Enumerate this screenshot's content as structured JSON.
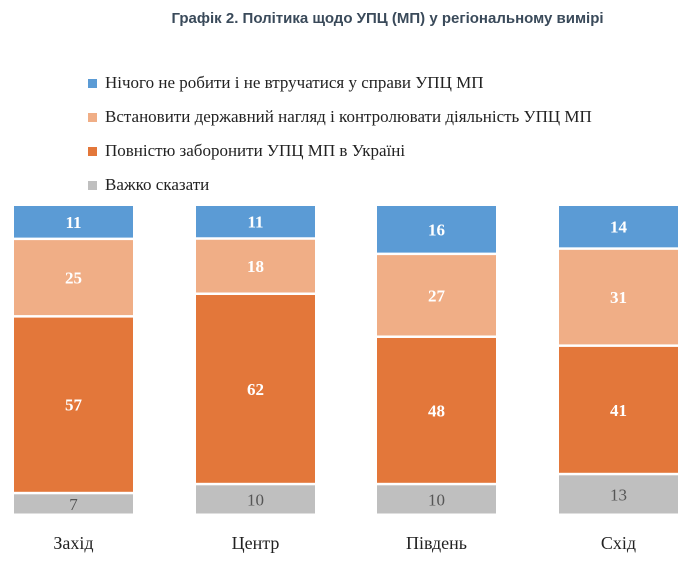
{
  "title": "Графік 2. Політика щодо УПЦ (МП) у регіональному вимірі",
  "chart_data": {
    "type": "bar",
    "stacked": true,
    "normalized": true,
    "categories": [
      "Захід",
      "Центр",
      "Південь",
      "Схід"
    ],
    "series": [
      {
        "name": "Нічого не робити і не втручатися у справи УПЦ МП",
        "values": [
          11,
          11,
          16,
          14
        ],
        "color": "#5b9bd5",
        "label_color": "#ffffff"
      },
      {
        "name": "Встановити державний нагляд і контролювати діяльність УПЦ МП",
        "values": [
          25,
          18,
          27,
          31
        ],
        "color": "#f0ae86",
        "label_color": "#ffffff"
      },
      {
        "name": "Повністю заборонити УПЦ МП в Україні",
        "values": [
          57,
          62,
          48,
          41
        ],
        "color": "#e3773a",
        "label_color": "#ffffff"
      },
      {
        "name": "Важко сказати",
        "values": [
          7,
          10,
          10,
          13
        ],
        "color": "#bfbfbf",
        "label_color": "#555555"
      }
    ],
    "legend_position": "top-left",
    "grid": false
  }
}
